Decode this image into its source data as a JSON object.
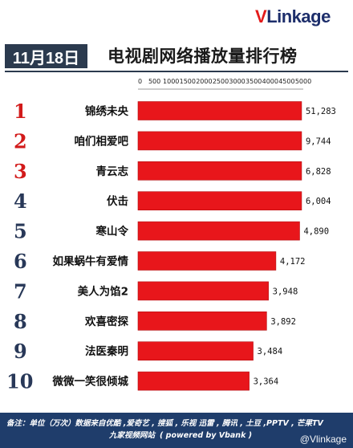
{
  "brand": {
    "logo_v": "V",
    "logo_rest": "Linkage"
  },
  "header": {
    "date": "11月18日",
    "title": "电视剧网络播放量排行榜"
  },
  "colors": {
    "bar": "#e8161b",
    "rank_red": "#d21a1a",
    "rank_navy": "#283858",
    "header_bg": "#2b3a4e",
    "footer_bg": "#1f3d6b"
  },
  "chart_data": {
    "type": "bar",
    "orientation": "horizontal",
    "xaxis_position": "top",
    "xlim": [
      0,
      5000
    ],
    "xticks": [
      0,
      500,
      1000,
      1500,
      2000,
      2500,
      3000,
      3500,
      4000,
      4500,
      5000
    ],
    "xtick_labels": [
      "0",
      "500",
      "1000",
      "1500",
      "2000",
      "2500",
      "3000",
      "3500",
      "4000",
      "4500",
      "5000"
    ],
    "bars_exceed_axis_scale": true,
    "ranks": [
      "1",
      "2",
      "3",
      "4",
      "5",
      "6",
      "7",
      "8",
      "9",
      "10"
    ],
    "categories": [
      "锦绣未央",
      "咱们相爱吧",
      "青云志",
      "伏击",
      "寒山令",
      "如果蜗牛有爱情",
      "美人为馅2",
      "欢喜密探",
      "法医秦明",
      "微微一笑很倾城"
    ],
    "values": [
      51283,
      9744,
      6828,
      6004,
      4890,
      4172,
      3948,
      3892,
      3484,
      3364
    ],
    "value_labels": [
      "51,283",
      "9,744",
      "6,828",
      "6,004",
      "4,890",
      "4,172",
      "3,948",
      "3,892",
      "3,484",
      "3,364"
    ]
  },
  "footer": {
    "line1": "备注：单位（万次）数据来自优酷 ,爱奇艺 , 搜狐 , 乐视  迅雷 , 腾讯 , 土豆 ,PPTV , 芒果TV",
    "line2_site": "九家视频网站",
    "line2_powered": "( powered by Vbank )"
  },
  "watermark": "@Vlinkage"
}
